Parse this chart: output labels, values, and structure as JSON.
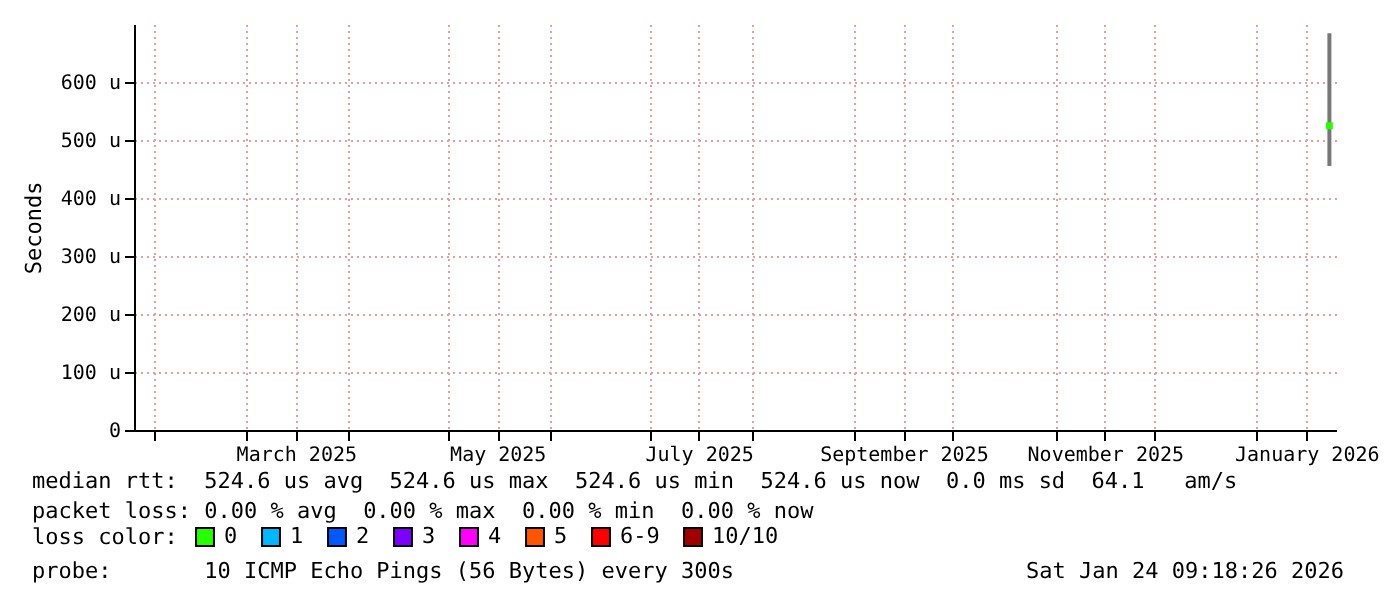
{
  "chart_data": {
    "type": "scatter",
    "ylabel": "Seconds",
    "x": [
      "2026-01-23"
    ],
    "xlim": [
      "2025-01-26",
      "2026-01-25"
    ],
    "xticks": [
      {
        "value": "2025-02-01",
        "label": null
      },
      {
        "value": "2025-03-01",
        "label": null
      },
      {
        "value": "2025-03-16",
        "label": "March 2025"
      },
      {
        "value": "2025-04-01",
        "label": null
      },
      {
        "value": "2025-05-01",
        "label": null
      },
      {
        "value": "2025-05-16",
        "label": "May 2025"
      },
      {
        "value": "2025-06-01",
        "label": null
      },
      {
        "value": "2025-07-01",
        "label": null
      },
      {
        "value": "2025-07-16",
        "label": "July 2025"
      },
      {
        "value": "2025-08-01",
        "label": null
      },
      {
        "value": "2025-09-01",
        "label": null
      },
      {
        "value": "2025-09-16",
        "label": "September 2025"
      },
      {
        "value": "2025-10-01",
        "label": null
      },
      {
        "value": "2025-11-01",
        "label": null
      },
      {
        "value": "2025-11-16",
        "label": "November 2025"
      },
      {
        "value": "2025-12-01",
        "label": null
      },
      {
        "value": "2026-01-01",
        "label": null
      },
      {
        "value": "2026-01-16",
        "label": "January 2026"
      }
    ],
    "ylim": [
      0,
      700
    ],
    "yticks": [
      0,
      {
        "value": 100,
        "label": "100 u"
      },
      {
        "value": 200,
        "label": "200 u"
      },
      {
        "value": 300,
        "label": "300 u"
      },
      {
        "value": 400,
        "label": "400 u"
      },
      {
        "value": 500,
        "label": "500 u"
      },
      {
        "value": 600,
        "label": "600 u"
      }
    ],
    "grid": true,
    "marker": "square",
    "legend": "bottom",
    "legend_title": "loss color:",
    "series": [
      {
        "name": "0",
        "color": "#26ff00",
        "values": [
          524.6
        ],
        "errors": [
          [
            455,
            684
          ]
        ]
      },
      {
        "name": "1",
        "color": "#00b8ff",
        "values": [
          null
        ]
      },
      {
        "name": "2",
        "color": "#0059ff",
        "values": [
          null
        ]
      },
      {
        "name": "3",
        "color": "#7e00ff",
        "values": [
          null
        ]
      },
      {
        "name": "4",
        "color": "#ff00ff",
        "values": [
          null
        ]
      },
      {
        "name": "5",
        "color": "#ff5500",
        "values": [
          null
        ]
      },
      {
        "name": "6-9",
        "color": "#ff0000",
        "values": [
          null
        ]
      },
      {
        "name": "10/10",
        "color": "#a10000",
        "values": [
          null
        ]
      }
    ],
    "annotations": [
      "median rtt:  524.6 us avg  524.6 us max  524.6 us min  524.6 us now  0.0 ms sd  64.1   am/s",
      "packet loss: 0.00 % avg  0.00 % max  0.00 % min  0.00 % now",
      "probe:       10 ICMP Echo Pings (56 Bytes) every 300s",
      "Sat Jan 24 09:18:26 2026"
    ]
  }
}
